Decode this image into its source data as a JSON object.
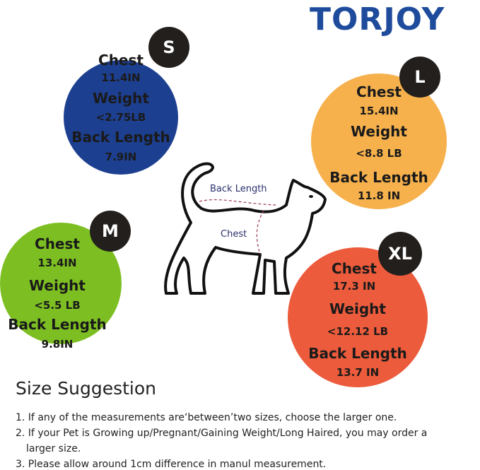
{
  "brand": "TORJOY",
  "sizes": [
    {
      "size": "S",
      "color": "#1d3f8f",
      "chest_label": "Chest",
      "chest": "11.4IN",
      "weight_label": "Weight",
      "weight": "<2.75LB",
      "back_label": "Back Length",
      "back": "7.9IN"
    },
    {
      "size": "L",
      "color": "#f6b14d",
      "chest_label": "Chest",
      "chest": "15.4IN",
      "weight_label": "Weight",
      "weight": "<8.8 LB",
      "back_label": "Back Length",
      "back": "11.8 IN"
    },
    {
      "size": "M",
      "color": "#7dbf22",
      "chest_label": "Chest",
      "chest": "13.4IN",
      "weight_label": "Weight",
      "weight": "<5.5 LB",
      "back_label": "Back Length",
      "back": "9.8IN"
    },
    {
      "size": "XL",
      "color": "#eb5b3c",
      "chest_label": "Chest",
      "chest": "17.3 IN",
      "weight_label": "Weight",
      "weight": "<12.12 LB",
      "back_label": "Back Length",
      "back": "13.7 IN"
    }
  ],
  "diagram": {
    "back_length": "Back Length",
    "chest": "Chest"
  },
  "suggestion": {
    "title": "Size Suggestion",
    "notes": [
      "1. If any of the measurements are‘between’two sizes, choose the larger one.",
      "2. If your Pet is Growing up/Pregnant/Gaining Weight/Long Haired, you may order a",
      "larger size.",
      "3. Please allow around 1cm difference in manul measurement."
    ]
  }
}
